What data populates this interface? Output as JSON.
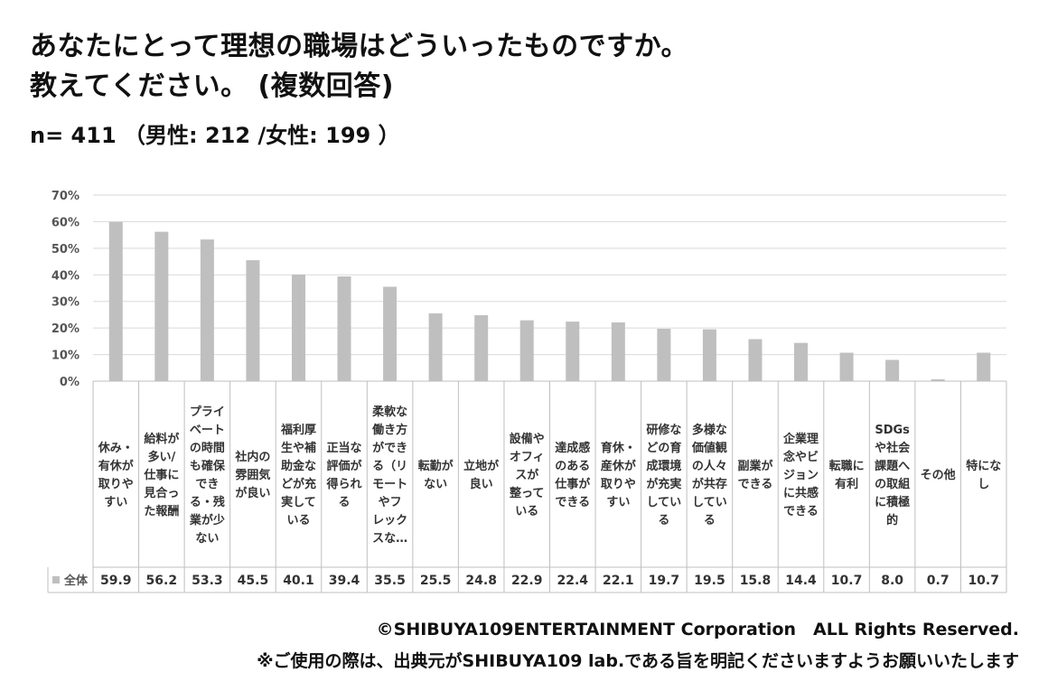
{
  "title_line1": "あなたにとって理想の職場はどういったものですか。",
  "title_line2": "教えてください。 (複数回答)",
  "sample": "n= 411 （男性: 212 /女性: 199 ）",
  "footer_copyright": "©SHIBUYA109ENTERTAINMENT Corporation　ALL Rights Reserved.",
  "footer_note": "※ご使用の際は、出典元がSHIBUYA109 lab.である旨を明記くださいますようお願いいたします",
  "chart_data": {
    "type": "bar",
    "yticks": [
      "0%",
      "10%",
      "20%",
      "30%",
      "40%",
      "50%",
      "60%",
      "70%"
    ],
    "ylim": [
      0,
      70
    ],
    "grid": true,
    "bar_color": "#bfbfbf",
    "categories": [
      [
        "休み・",
        "有休が",
        "取りや",
        "すい"
      ],
      [
        "給料が",
        "多い/",
        "仕事に",
        "見合っ",
        "た報酬"
      ],
      [
        "プライ",
        "ベート",
        "の時間",
        "も確保",
        "でき",
        "る・残",
        "業が少",
        "ない"
      ],
      [
        "社内の",
        "雰囲気",
        "が良い"
      ],
      [
        "福利厚",
        "生や補",
        "助金な",
        "どが充",
        "実して",
        "いる"
      ],
      [
        "正当な",
        "評価が",
        "得られ",
        "る"
      ],
      [
        "柔軟な",
        "働き方",
        "ができ",
        "る（リ",
        "モート",
        "やフ",
        "レック",
        "スな…"
      ],
      [
        "転勤が",
        "ない"
      ],
      [
        "立地が",
        "良い"
      ],
      [
        "設備や",
        "オフィ",
        "スが",
        "整って",
        "いる"
      ],
      [
        "達成感",
        "のある",
        "仕事が",
        "できる"
      ],
      [
        "育休・",
        "産休が",
        "取りや",
        "すい"
      ],
      [
        "研修な",
        "どの育",
        "成環境",
        "が充実",
        "してい",
        "る"
      ],
      [
        "多様な",
        "価値観",
        "の人々",
        "が共存",
        "してい",
        "る"
      ],
      [
        "副業が",
        "できる"
      ],
      [
        "企業理",
        "念やビ",
        "ジョン",
        "に共感",
        "できる"
      ],
      [
        "転職に",
        "有利"
      ],
      [
        "SDGs",
        "や社会",
        "課題へ",
        "の取組",
        "に積極",
        "的"
      ],
      [
        "その他"
      ],
      [
        "特にな",
        "し"
      ]
    ],
    "series": [
      {
        "name": "全体",
        "values": [
          59.9,
          56.2,
          53.3,
          45.5,
          40.1,
          39.4,
          35.5,
          25.5,
          24.8,
          22.9,
          22.4,
          22.1,
          19.7,
          19.5,
          15.8,
          14.4,
          10.7,
          8.0,
          0.7,
          10.7
        ],
        "labels": [
          "59.9",
          "56.2",
          "53.3",
          "45.5",
          "40.1",
          "39.4",
          "35.5",
          "25.5",
          "24.8",
          "22.9",
          "22.4",
          "22.1",
          "19.7",
          "19.5",
          "15.8",
          "14.4",
          "10.7",
          "8.0",
          "0.7",
          "10.7"
        ]
      }
    ]
  }
}
